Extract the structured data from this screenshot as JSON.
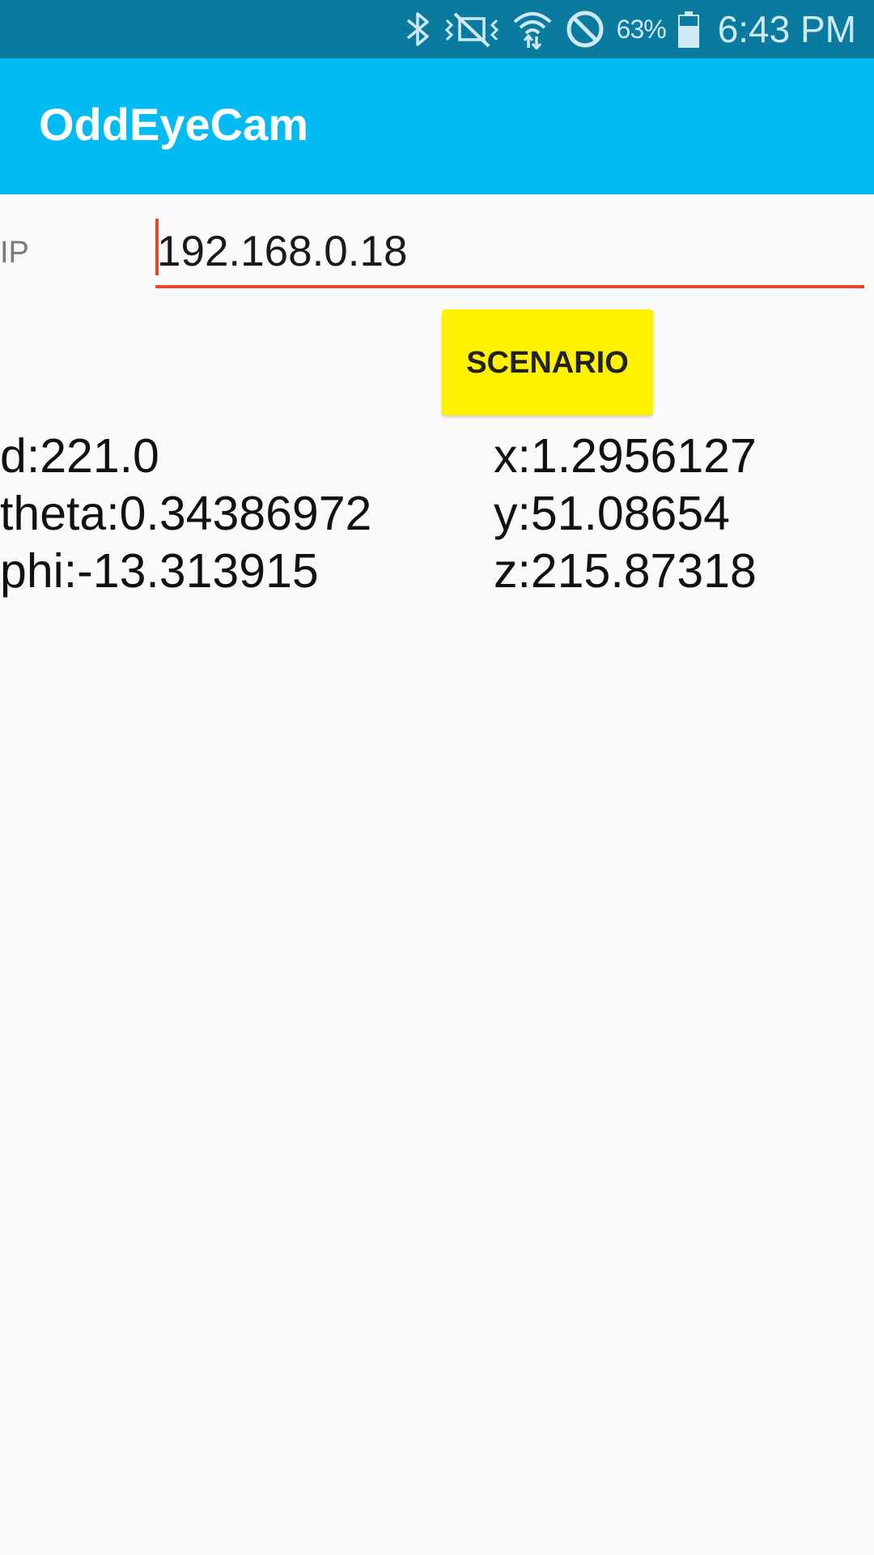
{
  "status_bar": {
    "battery_percent": "63%",
    "time": "6:43 PM",
    "icons": [
      "bluetooth-icon",
      "vibrate-mute-icon",
      "wifi-icon",
      "do-not-disturb-icon",
      "battery-icon"
    ]
  },
  "app_bar": {
    "title": "OddEyeCam"
  },
  "ip": {
    "label": "IP",
    "value": "192.168.0.18"
  },
  "scenario_button": {
    "label": "SCENARIO"
  },
  "readouts": {
    "d": "d:221.0",
    "theta": "theta:0.34386972",
    "phi": "phi:-13.313915",
    "x": "x:1.2956127",
    "y": "y:51.08654",
    "z": "z:215.87318"
  },
  "colors": {
    "status_bar": "#0a7b9e",
    "app_bar": "#02bbf3",
    "accent": "#e8472b",
    "button": "#fff200",
    "background": "#fafafa"
  }
}
